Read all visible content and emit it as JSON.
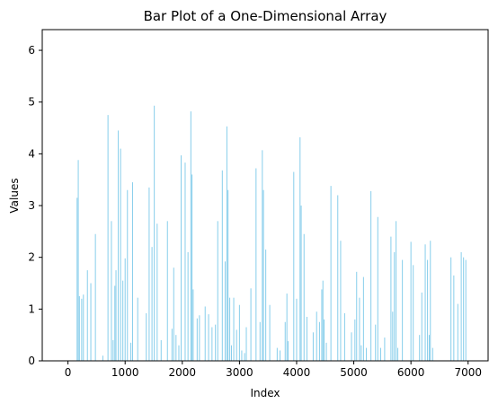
{
  "chart_data": {
    "type": "bar",
    "title": "Bar Plot of a One-Dimensional Array",
    "xlabel": "Index",
    "ylabel": "Values",
    "xlim": [
      -450,
      7350
    ],
    "ylim": [
      0,
      6.4
    ],
    "xticks": [
      0,
      1000,
      2000,
      3000,
      4000,
      5000,
      6000,
      7000
    ],
    "yticks": [
      0,
      1,
      2,
      3,
      4,
      5,
      6
    ],
    "bar_color": "#87ceeb",
    "bars": [
      {
        "x": 160,
        "y": 3.15
      },
      {
        "x": 180,
        "y": 3.88
      },
      {
        "x": 200,
        "y": 1.25
      },
      {
        "x": 240,
        "y": 1.2
      },
      {
        "x": 270,
        "y": 1.28
      },
      {
        "x": 340,
        "y": 1.75
      },
      {
        "x": 400,
        "y": 1.5
      },
      {
        "x": 480,
        "y": 2.45
      },
      {
        "x": 610,
        "y": 0.1
      },
      {
        "x": 700,
        "y": 4.75
      },
      {
        "x": 760,
        "y": 2.7
      },
      {
        "x": 790,
        "y": 0.4
      },
      {
        "x": 820,
        "y": 1.45
      },
      {
        "x": 840,
        "y": 1.75
      },
      {
        "x": 880,
        "y": 4.45
      },
      {
        "x": 920,
        "y": 4.1
      },
      {
        "x": 960,
        "y": 1.55
      },
      {
        "x": 1000,
        "y": 1.98
      },
      {
        "x": 1040,
        "y": 3.3
      },
      {
        "x": 1100,
        "y": 0.35
      },
      {
        "x": 1130,
        "y": 3.45
      },
      {
        "x": 1220,
        "y": 1.22
      },
      {
        "x": 1370,
        "y": 0.92
      },
      {
        "x": 1420,
        "y": 3.35
      },
      {
        "x": 1470,
        "y": 2.2
      },
      {
        "x": 1510,
        "y": 4.93
      },
      {
        "x": 1560,
        "y": 2.65
      },
      {
        "x": 1630,
        "y": 0.4
      },
      {
        "x": 1740,
        "y": 2.7
      },
      {
        "x": 1820,
        "y": 0.62
      },
      {
        "x": 1850,
        "y": 1.8
      },
      {
        "x": 1890,
        "y": 0.5
      },
      {
        "x": 1940,
        "y": 0.3
      },
      {
        "x": 1980,
        "y": 3.97
      },
      {
        "x": 2050,
        "y": 3.83
      },
      {
        "x": 2100,
        "y": 2.1
      },
      {
        "x": 2150,
        "y": 4.82
      },
      {
        "x": 2170,
        "y": 3.6
      },
      {
        "x": 2190,
        "y": 1.38
      },
      {
        "x": 2260,
        "y": 0.82
      },
      {
        "x": 2300,
        "y": 0.88
      },
      {
        "x": 2400,
        "y": 1.05
      },
      {
        "x": 2460,
        "y": 0.9
      },
      {
        "x": 2520,
        "y": 0.65
      },
      {
        "x": 2580,
        "y": 0.7
      },
      {
        "x": 2620,
        "y": 2.7
      },
      {
        "x": 2700,
        "y": 3.68
      },
      {
        "x": 2750,
        "y": 1.92
      },
      {
        "x": 2780,
        "y": 4.53
      },
      {
        "x": 2800,
        "y": 3.3
      },
      {
        "x": 2830,
        "y": 1.22
      },
      {
        "x": 2860,
        "y": 0.3
      },
      {
        "x": 2900,
        "y": 1.22
      },
      {
        "x": 2950,
        "y": 0.6
      },
      {
        "x": 3000,
        "y": 1.08
      },
      {
        "x": 3040,
        "y": 0.2
      },
      {
        "x": 3090,
        "y": 0.15
      },
      {
        "x": 3120,
        "y": 0.65
      },
      {
        "x": 3200,
        "y": 1.4
      },
      {
        "x": 3290,
        "y": 3.72
      },
      {
        "x": 3360,
        "y": 0.75
      },
      {
        "x": 3400,
        "y": 4.07
      },
      {
        "x": 3420,
        "y": 3.3
      },
      {
        "x": 3460,
        "y": 2.15
      },
      {
        "x": 3530,
        "y": 1.08
      },
      {
        "x": 3660,
        "y": 0.25
      },
      {
        "x": 3710,
        "y": 0.2
      },
      {
        "x": 3800,
        "y": 0.75
      },
      {
        "x": 3830,
        "y": 1.3
      },
      {
        "x": 3850,
        "y": 0.38
      },
      {
        "x": 3950,
        "y": 3.65
      },
      {
        "x": 4000,
        "y": 1.2
      },
      {
        "x": 4060,
        "y": 4.32
      },
      {
        "x": 4080,
        "y": 3.0
      },
      {
        "x": 4130,
        "y": 2.45
      },
      {
        "x": 4180,
        "y": 0.85
      },
      {
        "x": 4290,
        "y": 0.55
      },
      {
        "x": 4350,
        "y": 0.95
      },
      {
        "x": 4400,
        "y": 0.75
      },
      {
        "x": 4440,
        "y": 1.38
      },
      {
        "x": 4460,
        "y": 1.55
      },
      {
        "x": 4480,
        "y": 0.8
      },
      {
        "x": 4520,
        "y": 0.35
      },
      {
        "x": 4600,
        "y": 3.38
      },
      {
        "x": 4720,
        "y": 3.2
      },
      {
        "x": 4770,
        "y": 2.32
      },
      {
        "x": 4840,
        "y": 0.92
      },
      {
        "x": 4960,
        "y": 0.55
      },
      {
        "x": 5020,
        "y": 0.8
      },
      {
        "x": 5050,
        "y": 1.72
      },
      {
        "x": 5100,
        "y": 1.22
      },
      {
        "x": 5130,
        "y": 0.3
      },
      {
        "x": 5170,
        "y": 1.62
      },
      {
        "x": 5220,
        "y": 0.25
      },
      {
        "x": 5300,
        "y": 3.28
      },
      {
        "x": 5380,
        "y": 0.7
      },
      {
        "x": 5420,
        "y": 2.78
      },
      {
        "x": 5470,
        "y": 0.25
      },
      {
        "x": 5540,
        "y": 0.45
      },
      {
        "x": 5650,
        "y": 2.4
      },
      {
        "x": 5680,
        "y": 0.95
      },
      {
        "x": 5710,
        "y": 2.1
      },
      {
        "x": 5740,
        "y": 2.7
      },
      {
        "x": 5770,
        "y": 0.25
      },
      {
        "x": 5850,
        "y": 1.95
      },
      {
        "x": 6000,
        "y": 2.3
      },
      {
        "x": 6040,
        "y": 1.85
      },
      {
        "x": 6150,
        "y": 0.5
      },
      {
        "x": 6190,
        "y": 1.32
      },
      {
        "x": 6250,
        "y": 2.25
      },
      {
        "x": 6290,
        "y": 1.95
      },
      {
        "x": 6320,
        "y": 0.5
      },
      {
        "x": 6340,
        "y": 2.32
      },
      {
        "x": 6380,
        "y": 0.25
      },
      {
        "x": 6700,
        "y": 2.0
      },
      {
        "x": 6750,
        "y": 1.65
      },
      {
        "x": 6820,
        "y": 1.1
      },
      {
        "x": 6880,
        "y": 2.1
      },
      {
        "x": 6920,
        "y": 2.0
      },
      {
        "x": 6960,
        "y": 1.95
      }
    ]
  }
}
